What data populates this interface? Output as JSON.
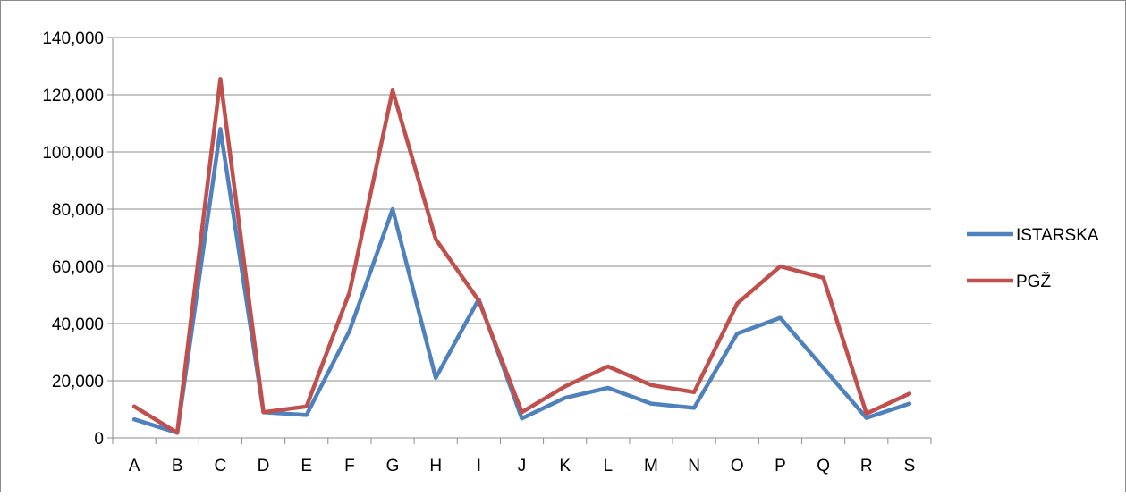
{
  "chart_data": {
    "type": "line",
    "title": "",
    "xlabel": "",
    "ylabel": "",
    "categories": [
      "A",
      "B",
      "C",
      "D",
      "E",
      "F",
      "G",
      "H",
      "I",
      "J",
      "K",
      "L",
      "M",
      "N",
      "O",
      "P",
      "Q",
      "R",
      "S"
    ],
    "ylim": [
      0,
      140000
    ],
    "yticks": [
      0,
      20000,
      40000,
      60000,
      80000,
      100000,
      120000,
      140000
    ],
    "ytick_labels": [
      "0",
      "20,000",
      "40,000",
      "60,000",
      "80,000",
      "100,000",
      "120,000",
      "140,000"
    ],
    "grid": true,
    "legend_position": "right",
    "series": [
      {
        "name": "ISTARSKA",
        "color": "#4f81bd",
        "values": [
          6500,
          1800,
          108000,
          9000,
          8000,
          37500,
          80000,
          21000,
          48500,
          6800,
          14000,
          17500,
          12000,
          10500,
          36500,
          42000,
          24500,
          7000,
          12000
        ]
      },
      {
        "name": "PGŽ",
        "color": "#c0504d",
        "values": [
          11000,
          1800,
          125500,
          9000,
          11000,
          51000,
          121500,
          69500,
          48000,
          9000,
          18000,
          25000,
          18500,
          16000,
          47000,
          60000,
          56000,
          8500,
          15500
        ]
      }
    ]
  }
}
